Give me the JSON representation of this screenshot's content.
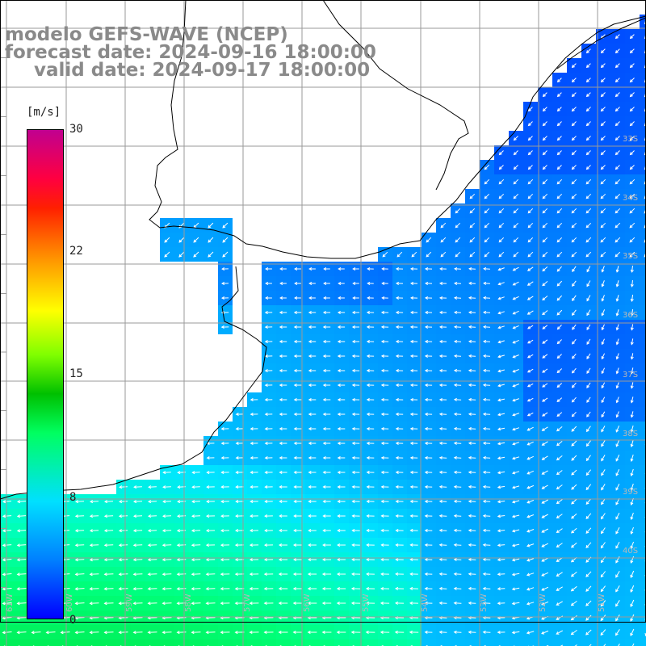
{
  "header": {
    "line1": "modelo GEFS-WAVE (NCEP)",
    "line2": "forecast date: 2024-09-16 18:00:00",
    "line3": "valid date: 2024-09-17 18:00:00"
  },
  "colorbar": {
    "unit": "[m/s]",
    "ticks": [
      "30",
      "22",
      "15",
      "8",
      "0"
    ],
    "tick_values": [
      30,
      22,
      15,
      8,
      0
    ],
    "range": [
      0,
      30
    ],
    "colors": [
      "#0000ff",
      "#0080ff",
      "#00e0ff",
      "#00ff60",
      "#00c000",
      "#80ff00",
      "#ffff00",
      "#ff9000",
      "#ff2000",
      "#ff0040",
      "#c00090"
    ]
  },
  "map": {
    "field": "wind speed and direction",
    "units": "m/s",
    "lon_labels": [
      "61W",
      "60W",
      "59W",
      "58W",
      "57W",
      "56W",
      "55W",
      "54W",
      "53W",
      "52W",
      "51W"
    ],
    "lat_labels": [
      "33S",
      "34S",
      "35S",
      "36S",
      "37S",
      "38S",
      "39S",
      "40S"
    ],
    "land_color": "#ffffff",
    "grid_color": "#9a9a9a",
    "arrow_color": "#ffffff",
    "coast_color": "#000000"
  }
}
